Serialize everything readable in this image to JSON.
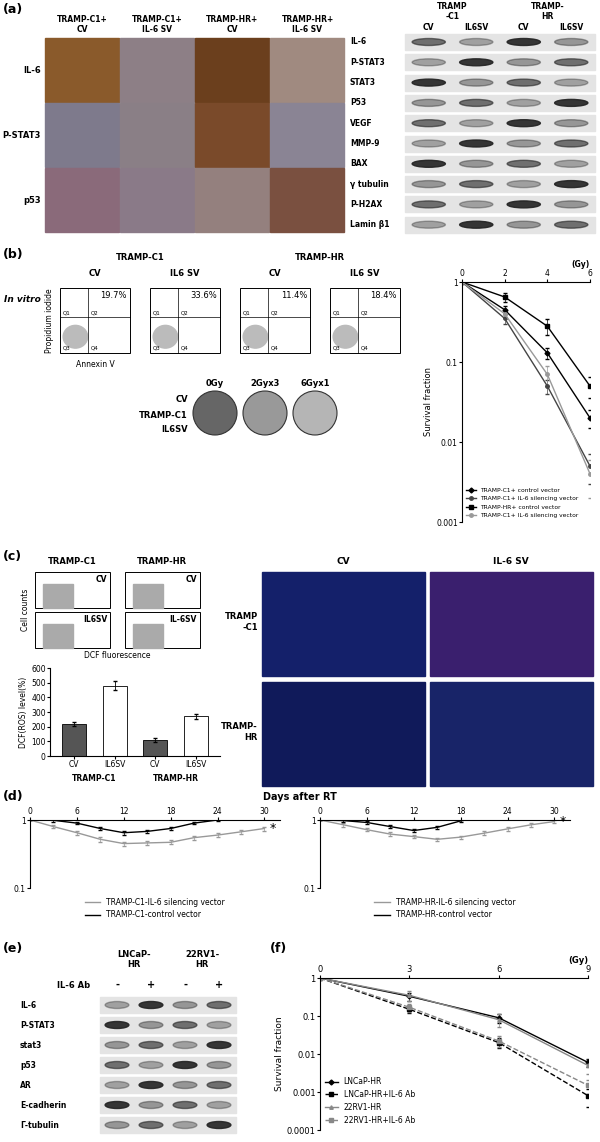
{
  "panel_labels": [
    "(a)",
    "(b)",
    "(c)",
    "(d)",
    "(e)",
    "(f)"
  ],
  "a": {
    "ihc": {
      "columns": [
        "TRAMP-C1+\nCV",
        "TRAMP-C1+\nIL-6 SV",
        "TRAMP-HR+\nCV",
        "TRAMP-HR+\nIL-6 SV"
      ],
      "rows": [
        "IL-6",
        "P-STAT3",
        "p53"
      ]
    },
    "blot": {
      "groups": [
        "TRAMP\n-C1",
        "TRAMP-\nHR"
      ],
      "lanes": [
        "CV",
        "IL6SV",
        "CV",
        "IL6SV"
      ],
      "rows": [
        "IL-6",
        "P-STAT3",
        "STAT3",
        "P53",
        "VEGF",
        "MMP-9",
        "BAX",
        "γ tubulin",
        "P-H2AX",
        "Lamin β1"
      ]
    }
  },
  "b": {
    "side_label": "In vitro",
    "flow": {
      "groups": [
        "TRAMP-C1",
        "TRAMP-HR"
      ],
      "titles": [
        "CV",
        "IL6 SV",
        "CV",
        "IL6 SV"
      ],
      "ylabel": "Propidium iodide",
      "xlabel": "Annexin V",
      "quadrants": [
        "Q1",
        "Q2",
        "Q3",
        "Q4"
      ],
      "percentages": [
        "19.7%",
        "33.6%",
        "11.4%",
        "18.4%"
      ]
    },
    "clonogenic": {
      "columns": [
        "0Gy",
        "2Gyx3",
        "6Gyx1"
      ],
      "row_labels": [
        "CV",
        "TRAMP-C1",
        "IL6SV"
      ]
    }
  },
  "c": {
    "histograms": {
      "groups": [
        "TRAMP-C1",
        "TRAMP-HR"
      ],
      "labels": [
        [
          "CV",
          "IL6SV"
        ],
        [
          "CV",
          "IL-6SV"
        ]
      ],
      "xlabel": "DCF fluorescence",
      "ylabel": "Cell counts"
    },
    "fluorescence": {
      "columns": [
        "CV",
        "IL-6 SV"
      ],
      "rows": [
        "TRAMP\n-C1",
        "TRAMP-\nHR"
      ]
    }
  },
  "d": {
    "title": "Days after RT"
  },
  "e": {
    "header": "IL-6 Ab",
    "groups": [
      "LNCaP-\nHR",
      "22RV1-\nHR"
    ],
    "lanes": [
      "-",
      "+",
      "-",
      "+"
    ],
    "rows": [
      "IL-6",
      "P-STAT3",
      "stat3",
      "p53",
      "AR",
      "E-cadherin",
      "Γ-tubulin"
    ]
  },
  "chart_data": [
    {
      "type": "line",
      "xlabel": "(Gy)",
      "ylabel": "Survival fraction",
      "x": [
        0,
        2,
        4,
        6
      ],
      "xlim": [
        0,
        6
      ],
      "xticks": [
        0,
        2,
        4,
        6
      ],
      "ylim": [
        0.001,
        1
      ],
      "yticks": [
        0.001,
        0.01,
        0.1,
        1
      ],
      "log": "y",
      "legend": "lower left",
      "series": [
        {
          "name": "TRAMP-C1+ control vector",
          "color": "#000000",
          "marker": "diamond",
          "line_style": "solid",
          "values": [
            1,
            0.45,
            0.13,
            0.02
          ],
          "errors": [
            0,
            0.05,
            0.02,
            0.005
          ]
        },
        {
          "name": "TRAMP-C1+ IL-6 silencing vector",
          "color": "#444444",
          "marker": "circle",
          "line_style": "solid",
          "values": [
            1,
            0.35,
            0.05,
            0.005
          ],
          "errors": [
            0,
            0.05,
            0.01,
            0.002
          ]
        },
        {
          "name": "TRAMP-HR+ control vector",
          "color": "#000000",
          "marker": "square",
          "line_style": "solid",
          "values": [
            1,
            0.65,
            0.28,
            0.05
          ],
          "errors": [
            0,
            0.08,
            0.06,
            0.015
          ]
        },
        {
          "name": "TRAMP-C1+ IL-6 silencing vector",
          "color": "#999999",
          "marker": "circle",
          "line_style": "solid",
          "values": [
            1,
            0.4,
            0.07,
            0.004
          ],
          "errors": [
            0,
            0.05,
            0.02,
            0.002
          ]
        }
      ]
    },
    {
      "type": "bar",
      "ylabel": "DCF(ROS) level(%)",
      "categories": [
        "CV",
        "IL6SV",
        "CV",
        "IL6SV"
      ],
      "groups": [
        "TRAMP-C1",
        "TRAMP-HR"
      ],
      "values": [
        220,
        480,
        110,
        270
      ],
      "errors": [
        15,
        30,
        12,
        15
      ],
      "colors": [
        "#555555",
        "#ffffff",
        "#555555",
        "#ffffff"
      ],
      "ylim": [
        0,
        600
      ],
      "yticks": [
        0,
        100,
        200,
        300,
        400,
        500,
        600
      ]
    },
    {
      "type": "line",
      "x": [
        0,
        3,
        6,
        9,
        12,
        15,
        18,
        21,
        24,
        27,
        30
      ],
      "xlim": [
        0,
        32
      ],
      "xticks": [
        0,
        6,
        12,
        18,
        24,
        30
      ],
      "ylim": [
        0.1,
        1
      ],
      "yticks": [
        0.1,
        1
      ],
      "log": "y",
      "legend": "below",
      "annotation": "*",
      "series": [
        {
          "name": "TRAMP-C1-IL-6 silencing vector",
          "color": "#999999",
          "marker": "none",
          "line_style": "solid",
          "values": [
            1,
            0.8,
            0.65,
            0.52,
            0.45,
            0.46,
            0.47,
            0.55,
            0.6,
            0.67,
            0.75
          ],
          "errors": [
            0,
            0.05,
            0.05,
            0.04,
            0.03,
            0.03,
            0.03,
            0.04,
            0.04,
            0.05,
            0.05
          ]
        },
        {
          "name": "TRAMP-C1-control vector",
          "color": "#000000",
          "marker": "none",
          "line_style": "solid",
          "values": [
            1,
            0.99,
            0.9,
            0.75,
            0.65,
            0.68,
            0.75,
            0.9,
            1,
            null,
            null
          ],
          "errors": [
            0,
            0.04,
            0.04,
            0.04,
            0.04,
            0.04,
            0.04,
            0.04,
            0.04,
            null,
            null
          ]
        }
      ]
    },
    {
      "type": "line",
      "x": [
        0,
        3,
        6,
        9,
        12,
        15,
        18,
        21,
        24,
        27,
        30
      ],
      "xlim": [
        0,
        32
      ],
      "xticks": [
        0,
        6,
        12,
        18,
        24,
        30
      ],
      "ylim": [
        0.1,
        1
      ],
      "yticks": [
        0.1,
        1
      ],
      "log": "y",
      "legend": "below",
      "annotation": "*",
      "series": [
        {
          "name": "TRAMP-HR-IL-6 silencing vector",
          "color": "#999999",
          "marker": "none",
          "line_style": "solid",
          "values": [
            1,
            0.85,
            0.72,
            0.62,
            0.57,
            0.52,
            0.56,
            0.64,
            0.74,
            0.85,
            0.95
          ],
          "errors": [
            0,
            0.05,
            0.04,
            0.04,
            0.03,
            0.03,
            0.03,
            0.04,
            0.04,
            0.05,
            0.05
          ]
        },
        {
          "name": "TRAMP-HR-control vector",
          "color": "#000000",
          "marker": "none",
          "line_style": "solid",
          "values": [
            1,
            0.98,
            0.92,
            0.8,
            0.7,
            0.78,
            0.97,
            null,
            null,
            null,
            null
          ],
          "errors": [
            0,
            0.04,
            0.04,
            0.04,
            0.04,
            0.04,
            0.04,
            null,
            null,
            null,
            null
          ]
        }
      ]
    },
    {
      "type": "line",
      "xlabel": "(Gy)",
      "ylabel": "Survival fraction",
      "x": [
        0,
        3,
        6,
        9
      ],
      "xlim": [
        0,
        9
      ],
      "xticks": [
        0,
        3,
        6,
        9
      ],
      "ylim": [
        0.0001,
        1
      ],
      "yticks": [
        0.0001,
        0.001,
        0.01,
        0.1,
        1
      ],
      "log": "y",
      "legend": "lower left",
      "series": [
        {
          "name": "LNCaP-HR",
          "color": "#000000",
          "marker": "diamond",
          "line_style": "solid",
          "values": [
            1,
            0.33,
            0.09,
            0.006
          ],
          "errors": [
            0,
            0.08,
            0.025,
            0.0015
          ]
        },
        {
          "name": "LNCaP-HR+IL-6 Ab",
          "color": "#000000",
          "marker": "square",
          "line_style": "dashed",
          "values": [
            1,
            0.15,
            0.02,
            0.0008
          ],
          "errors": [
            0,
            0.03,
            0.006,
            0.0004
          ]
        },
        {
          "name": "22RV1-HR",
          "color": "#888888",
          "marker": "triangle",
          "line_style": "solid",
          "values": [
            1,
            0.35,
            0.08,
            0.005
          ],
          "errors": [
            0,
            0.1,
            0.03,
            0.002
          ]
        },
        {
          "name": "22RV1-HR+IL-6 Ab",
          "color": "#888888",
          "marker": "square",
          "line_style": "dashed",
          "values": [
            1,
            0.17,
            0.022,
            0.0015
          ],
          "errors": [
            0,
            0.04,
            0.007,
            0.0006
          ]
        }
      ]
    }
  ]
}
